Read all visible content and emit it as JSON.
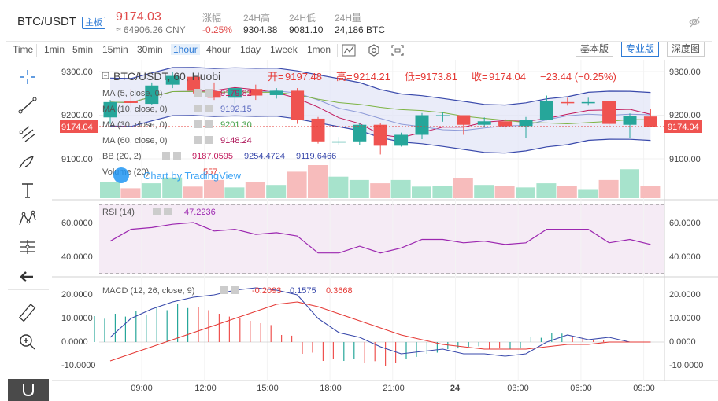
{
  "header": {
    "pair": "BTC/USDT",
    "badge": "主板",
    "price": "9174.03",
    "cny": "≈ 64906.26 CNY",
    "stats": [
      {
        "label": "涨幅",
        "value": "-0.25%",
        "red": true
      },
      {
        "label": "24H高",
        "value": "9304.88",
        "red": false
      },
      {
        "label": "24H低",
        "value": "9081.10",
        "red": false
      },
      {
        "label": "24H量",
        "value": "24,186 BTC",
        "red": false
      }
    ]
  },
  "toolbar": {
    "intervals": [
      "Time",
      "1min",
      "5min",
      "15min",
      "30min",
      "1hour",
      "4hour",
      "1day",
      "1week",
      "1mon"
    ],
    "active": "1hour",
    "views": [
      "基本版",
      "专业版",
      "深度图"
    ],
    "active_view": "专业版"
  },
  "main_pane": {
    "title_parts": [
      "BTC/USDT, 60, Huobi"
    ],
    "ohlc": {
      "o_label": "开=",
      "o": "9197.48",
      "h_label": "高=",
      "h": "9214.21",
      "l_label": "低=",
      "l": "9173.81",
      "c_label": "收=",
      "c": "9174.04",
      "chg": "−23.44 (−0.25%)"
    },
    "indicators": [
      {
        "label": "MA (5, close, 0)",
        "value": "9179.82",
        "color": "#c2185b"
      },
      {
        "label": "MA (10, close, 0)",
        "value": "9192.15",
        "color": "#5c6bc0"
      },
      {
        "label": "MA (30, close, 0)",
        "value": "9201.30",
        "color": "#43a047"
      },
      {
        "label": "MA (60, close, 0)",
        "value": "9148.24",
        "color": "#ad1457"
      }
    ],
    "bb": {
      "label": "BB (20, 2)",
      "values": [
        "9187.0595",
        "9254.4724",
        "9119.6466"
      ],
      "colors": [
        "#c2185b",
        "#3949ab",
        "#3949ab"
      ]
    },
    "volume": {
      "label": "Volume (20)",
      "value": "557"
    },
    "watermark": "Chart by TradingView",
    "price_tag": "9174.04",
    "y_ticks": [
      "9300.00",
      "9200.00",
      "9100.00"
    ]
  },
  "rsi_pane": {
    "label": "RSI (14)",
    "value": "47.2236",
    "y_ticks": [
      "60.0000",
      "40.0000"
    ]
  },
  "macd_pane": {
    "label": "MACD (12, 26, close, 9)",
    "values": [
      "-0.2093",
      "0.1575",
      "0.3668"
    ],
    "colors": [
      "#e53935",
      "#3949ab",
      "#e53935"
    ],
    "y_ticks": [
      "20.0000",
      "10.0000",
      "0.0000",
      "-10.0000"
    ]
  },
  "x_axis": [
    "09:00",
    "12:00",
    "15:00",
    "18:00",
    "21:00",
    "24",
    "03:00",
    "06:00",
    "09:00"
  ],
  "candles": [
    {
      "o": 9195,
      "h": 9235,
      "l": 9180,
      "c": 9230
    },
    {
      "o": 9232,
      "h": 9260,
      "l": 9220,
      "c": 9228
    },
    {
      "o": 9226,
      "h": 9275,
      "l": 9224,
      "c": 9268
    },
    {
      "o": 9270,
      "h": 9300,
      "l": 9262,
      "c": 9290
    },
    {
      "o": 9288,
      "h": 9296,
      "l": 9250,
      "c": 9256
    },
    {
      "o": 9255,
      "h": 9275,
      "l": 9235,
      "c": 9240
    },
    {
      "o": 9240,
      "h": 9265,
      "l": 9225,
      "c": 9262
    },
    {
      "o": 9260,
      "h": 9270,
      "l": 9235,
      "c": 9245
    },
    {
      "o": 9246,
      "h": 9262,
      "l": 9238,
      "c": 9256
    },
    {
      "o": 9256,
      "h": 9262,
      "l": 9180,
      "c": 9190
    },
    {
      "o": 9192,
      "h": 9196,
      "l": 9135,
      "c": 9140
    },
    {
      "o": 9138,
      "h": 9150,
      "l": 9132,
      "c": 9140
    },
    {
      "o": 9140,
      "h": 9182,
      "l": 9132,
      "c": 9178
    },
    {
      "o": 9178,
      "h": 9182,
      "l": 9110,
      "c": 9130
    },
    {
      "o": 9130,
      "h": 9160,
      "l": 9128,
      "c": 9155
    },
    {
      "o": 9155,
      "h": 9205,
      "l": 9145,
      "c": 9200
    },
    {
      "o": 9198,
      "h": 9208,
      "l": 9185,
      "c": 9200
    },
    {
      "o": 9200,
      "h": 9200,
      "l": 9155,
      "c": 9178
    },
    {
      "o": 9178,
      "h": 9195,
      "l": 9172,
      "c": 9186
    },
    {
      "o": 9186,
      "h": 9192,
      "l": 9168,
      "c": 9175
    },
    {
      "o": 9175,
      "h": 9196,
      "l": 9148,
      "c": 9190
    },
    {
      "o": 9190,
      "h": 9245,
      "l": 9188,
      "c": 9232
    },
    {
      "o": 9230,
      "h": 9240,
      "l": 9222,
      "c": 9228
    },
    {
      "o": 9230,
      "h": 9240,
      "l": 9222,
      "c": 9230
    },
    {
      "o": 9232,
      "h": 9232,
      "l": 9176,
      "c": 9180
    },
    {
      "o": 9178,
      "h": 9204,
      "l": 9148,
      "c": 9198
    },
    {
      "o": 9197,
      "h": 9214,
      "l": 9173,
      "c": 9174
    }
  ],
  "volumes": [
    20,
    12,
    18,
    25,
    14,
    22,
    13,
    20,
    16,
    32,
    40,
    26,
    22,
    18,
    22,
    14,
    15,
    24,
    16,
    15,
    13,
    18,
    15,
    10,
    22,
    35,
    15
  ],
  "rsi_values": [
    49,
    56,
    57,
    59,
    60,
    55,
    56,
    53,
    54,
    52,
    42,
    42,
    46,
    42,
    45,
    50,
    50,
    48,
    49,
    47,
    48,
    56,
    56,
    56,
    48,
    50,
    47
  ],
  "macd_line": [
    2,
    10,
    14,
    17,
    19,
    20,
    22,
    23,
    22,
    20,
    10,
    4,
    2,
    -2,
    -5,
    -4,
    -3,
    -5,
    -5,
    -6,
    -5,
    0,
    3,
    1,
    2,
    0,
    0
  ],
  "signal_line": [
    -8,
    -5,
    -2,
    1,
    4,
    7,
    10,
    13,
    16,
    17,
    15,
    12,
    9,
    6,
    3,
    1,
    -1,
    -2,
    -3,
    -3,
    -3,
    -2,
    -1,
    -1,
    0,
    0,
    0
  ],
  "histogram": [
    11,
    12,
    13,
    15,
    16,
    15,
    12,
    10,
    8,
    3,
    -5,
    -8,
    -8,
    -9,
    -10,
    -7,
    -5,
    -3,
    -2,
    -3,
    -3,
    2,
    4,
    2,
    1,
    0,
    0
  ]
}
